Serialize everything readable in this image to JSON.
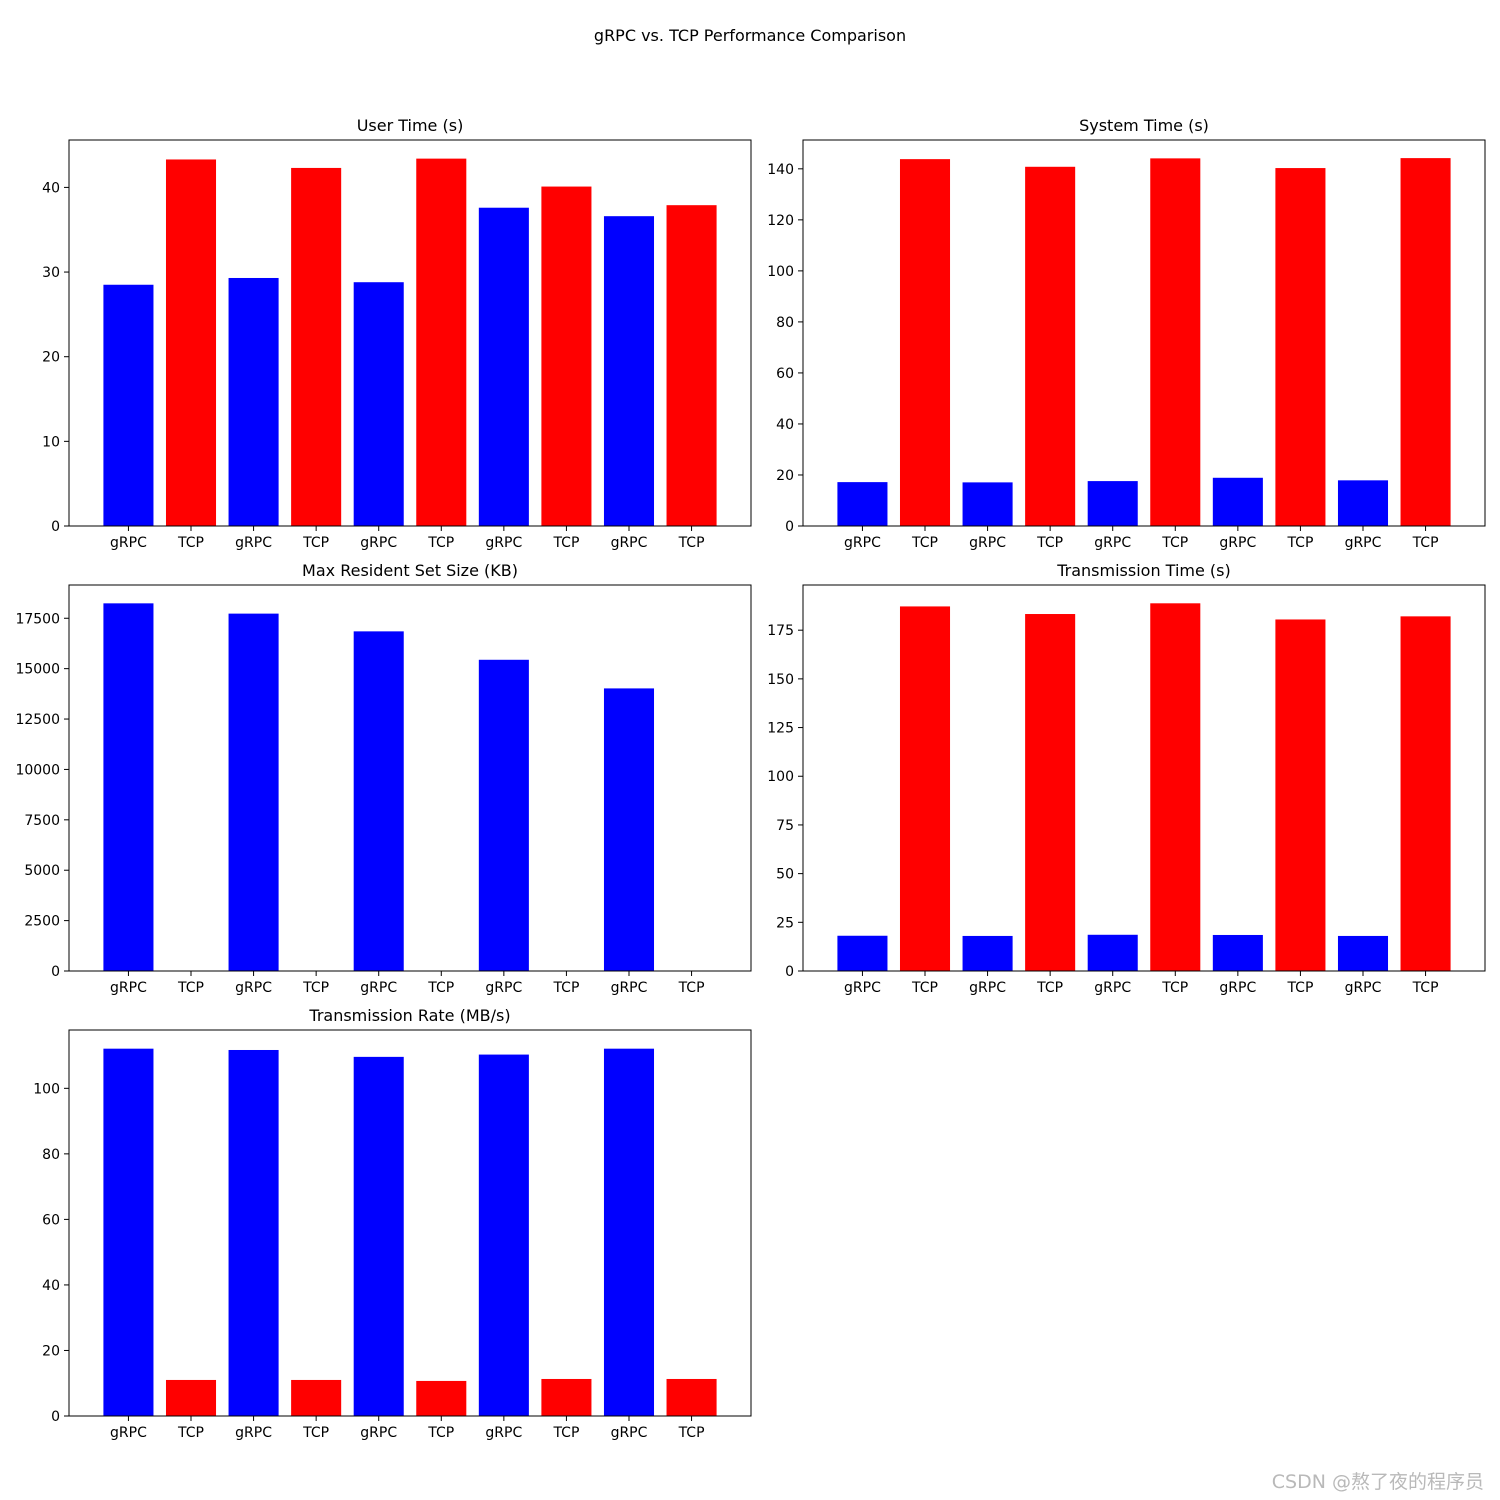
{
  "figure": {
    "title": "gRPC vs. TCP Performance Comparison",
    "watermark": "CSDN @熬了夜的程序员"
  },
  "colors": {
    "grpc": "#0000ff",
    "tcp": "#ff0000"
  },
  "chart_data": [
    {
      "type": "bar",
      "title": "User Time (s)",
      "categories": [
        "gRPC",
        "TCP",
        "gRPC",
        "TCP",
        "gRPC",
        "TCP",
        "gRPC",
        "TCP",
        "gRPC",
        "TCP"
      ],
      "values": [
        28.5,
        43.3,
        29.3,
        42.3,
        28.8,
        43.4,
        37.6,
        40.1,
        36.6,
        37.9
      ],
      "yticks": [
        0,
        10,
        20,
        30,
        40
      ],
      "ylim": [
        0,
        45.6
      ]
    },
    {
      "type": "bar",
      "title": "System Time (s)",
      "categories": [
        "gRPC",
        "TCP",
        "gRPC",
        "TCP",
        "gRPC",
        "TCP",
        "gRPC",
        "TCP",
        "gRPC",
        "TCP"
      ],
      "values": [
        17.2,
        143.8,
        17.1,
        140.8,
        17.6,
        144.1,
        18.9,
        140.3,
        17.9,
        144.2
      ],
      "yticks": [
        0,
        20,
        40,
        60,
        80,
        100,
        120,
        140
      ],
      "ylim": [
        0,
        151.3
      ]
    },
    {
      "type": "bar",
      "title": "Max Resident Set Size (KB)",
      "categories": [
        "gRPC",
        "TCP",
        "gRPC",
        "TCP",
        "gRPC",
        "TCP",
        "gRPC",
        "TCP",
        "gRPC",
        "TCP"
      ],
      "values": [
        18240,
        0,
        17730,
        0,
        16850,
        0,
        15440,
        0,
        14020,
        0
      ],
      "yticks": [
        0,
        2500,
        5000,
        7500,
        10000,
        12500,
        15000,
        17500
      ],
      "ylim": [
        0,
        19150
      ]
    },
    {
      "type": "bar",
      "title": "Transmission Time (s)",
      "categories": [
        "gRPC",
        "TCP",
        "gRPC",
        "TCP",
        "gRPC",
        "TCP",
        "gRPC",
        "TCP",
        "gRPC",
        "TCP"
      ],
      "values": [
        18.1,
        187.2,
        18.0,
        183.3,
        18.6,
        188.8,
        18.5,
        180.5,
        18.0,
        182.1
      ],
      "yticks": [
        0,
        25,
        50,
        75,
        100,
        125,
        150,
        175
      ],
      "ylim": [
        0,
        198.2
      ]
    },
    {
      "type": "bar",
      "title": "Transmission Rate (MB/s)",
      "categories": [
        "gRPC",
        "TCP",
        "gRPC",
        "TCP",
        "gRPC",
        "TCP",
        "gRPC",
        "TCP",
        "gRPC",
        "TCP"
      ],
      "values": [
        112.1,
        11.0,
        111.7,
        11.0,
        109.6,
        10.7,
        110.3,
        11.3,
        112.1,
        11.3
      ],
      "yticks": [
        0,
        20,
        40,
        60,
        80,
        100
      ],
      "ylim": [
        0,
        117.8
      ]
    }
  ]
}
